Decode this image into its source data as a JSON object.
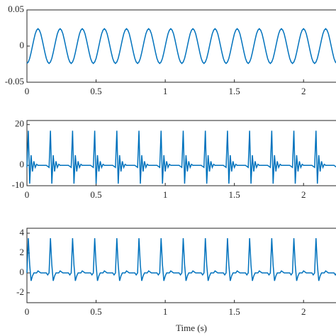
{
  "chart_data": {
    "type": "line",
    "xlabel": "Time (s)",
    "xlim": [
      0,
      2.25
    ],
    "xticks": [
      0,
      0.5,
      1,
      1.5,
      2
    ],
    "x": [
      0,
      0.01,
      0.02,
      0.03,
      0.04,
      0.05,
      0.06,
      0.07,
      0.08,
      0.09,
      0.1,
      0.11,
      0.12,
      0.13,
      0.14,
      0.15,
      0.16,
      0.17,
      0.18,
      0.19,
      0.2,
      0.21,
      0.22,
      0.23,
      0.24,
      0.25,
      0.26,
      0.27,
      0.28,
      0.29,
      0.3,
      0.31,
      0.32,
      0.33,
      0.34,
      0.35,
      0.36,
      0.37,
      0.38,
      0.39,
      0.4,
      0.41,
      0.42,
      0.43,
      0.44,
      0.45,
      0.46,
      0.47,
      0.48,
      0.49,
      0.5,
      0.51,
      0.52,
      0.53,
      0.54,
      0.55,
      0.56,
      0.57,
      0.58,
      0.59,
      0.6,
      0.61,
      0.62,
      0.63,
      0.64,
      0.65,
      0.66,
      0.67,
      0.68,
      0.69,
      0.7,
      0.71,
      0.72,
      0.73,
      0.74,
      0.75,
      0.76,
      0.77,
      0.78,
      0.79,
      0.8,
      0.81,
      0.82,
      0.83,
      0.84,
      0.85,
      0.86,
      0.87,
      0.88,
      0.89,
      0.9,
      0.91,
      0.92,
      0.93,
      0.94,
      0.95,
      0.96,
      0.97,
      0.98,
      0.99,
      1,
      1.01,
      1.02,
      1.03,
      1.04,
      1.05,
      1.06,
      1.07,
      1.08,
      1.09,
      1.1,
      1.11,
      1.12,
      1.13,
      1.14,
      1.15,
      1.16,
      1.17,
      1.18,
      1.19,
      1.2,
      1.21,
      1.22,
      1.23,
      1.24,
      1.25,
      1.26,
      1.27,
      1.28,
      1.29,
      1.3,
      1.31,
      1.32,
      1.33,
      1.34,
      1.35,
      1.36,
      1.37,
      1.38,
      1.39,
      1.4,
      1.41,
      1.42,
      1.43,
      1.44,
      1.45,
      1.46,
      1.47,
      1.48,
      1.49,
      1.5,
      1.51,
      1.52,
      1.53,
      1.54,
      1.55,
      1.56,
      1.57,
      1.58,
      1.59,
      1.6,
      1.61,
      1.62,
      1.63,
      1.64,
      1.65,
      1.66,
      1.67,
      1.68,
      1.69,
      1.7,
      1.71,
      1.72,
      1.73,
      1.74,
      1.75,
      1.76,
      1.77,
      1.78,
      1.79,
      1.8,
      1.81,
      1.82,
      1.83,
      1.84,
      1.85,
      1.86,
      1.87,
      1.88,
      1.89,
      1.9,
      1.91,
      1.92,
      1.93,
      1.94,
      1.95,
      1.96,
      1.97,
      1.98,
      1.99,
      2,
      2.01,
      2.02,
      2.03,
      2.04,
      2.05,
      2.06,
      2.07,
      2.08,
      2.09,
      2.1,
      2.11,
      2.12,
      2.13,
      2.14,
      2.15,
      2.16,
      2.17,
      2.18,
      2.19,
      2.2,
      2.21,
      2.22,
      2.23,
      2.24
    ],
    "panels": [
      {
        "ylim": [
          -0.05,
          0.05
        ],
        "yticks": [
          -0.05,
          0,
          0.05
        ],
        "series": [
          {
            "color": "#0072BD",
            "values": [
              -0.024,
              -0.022,
              -0.017,
              -0.009,
              0,
              0.009,
              0.017,
              0.022,
              0.024,
              0.022,
              0.017,
              0.009,
              0,
              -0.009,
              -0.017,
              -0.022,
              -0.024,
              -0.022,
              -0.017,
              -0.009,
              0,
              0.009,
              0.017,
              0.022,
              0.024,
              0.022,
              0.017,
              0.009,
              0,
              -0.009,
              -0.017,
              -0.022,
              -0.024,
              -0.022,
              -0.017,
              -0.009,
              0,
              0.009,
              0.017,
              0.022,
              0.024,
              0.022,
              0.017,
              0.009,
              0,
              -0.009,
              -0.017,
              -0.022,
              -0.024,
              -0.022,
              -0.017,
              -0.009,
              0,
              0.009,
              0.017,
              0.022,
              0.024,
              0.022,
              0.017,
              0.009,
              0,
              -0.009,
              -0.017,
              -0.022,
              -0.024,
              -0.022,
              -0.017,
              -0.009,
              0,
              0.009,
              0.017,
              0.022,
              0.024,
              0.022,
              0.017,
              0.009,
              0,
              -0.009,
              -0.017,
              -0.022,
              -0.024,
              -0.022,
              -0.017,
              -0.009,
              0,
              0.009,
              0.017,
              0.022,
              0.024,
              0.022,
              0.017,
              0.009,
              0,
              -0.009,
              -0.017,
              -0.022,
              -0.024,
              -0.022,
              -0.017,
              -0.009,
              0,
              0.009,
              0.017,
              0.022,
              0.024,
              0.022,
              0.017,
              0.009,
              0,
              -0.009,
              -0.017,
              -0.022,
              -0.024,
              -0.022,
              -0.017,
              -0.009,
              0,
              0.009,
              0.017,
              0.022,
              0.024,
              0.022,
              0.017,
              0.009,
              0,
              -0.009,
              -0.017,
              -0.022,
              -0.024,
              -0.022,
              -0.017,
              -0.009,
              0,
              0.009,
              0.017,
              0.022,
              0.024,
              0.022,
              0.017,
              0.009,
              0,
              -0.009,
              -0.017,
              -0.022,
              -0.024,
              -0.022,
              -0.017,
              -0.009,
              0,
              0.009,
              0.017,
              0.022,
              0.024,
              0.022,
              0.017,
              0.009,
              0,
              -0.009,
              -0.017,
              -0.022,
              -0.024,
              -0.022,
              -0.017,
              -0.009,
              0,
              0.009,
              0.017,
              0.022,
              0.024,
              0.022,
              0.017,
              0.009,
              0,
              -0.009,
              -0.017,
              -0.022,
              -0.024,
              -0.022,
              -0.017,
              -0.009,
              0,
              0.009,
              0.017,
              0.022,
              0.024,
              0.022,
              0.017,
              0.009,
              0,
              -0.009,
              -0.017,
              -0.022,
              -0.024,
              -0.022,
              -0.017,
              -0.009,
              0,
              0.009,
              0.017,
              0.022,
              0.024,
              0.022,
              0.017,
              0.009,
              0,
              -0.009,
              -0.017,
              -0.022,
              -0.024,
              -0.022,
              -0.017,
              -0.009,
              0,
              0.009,
              0.017,
              0.022,
              0.024,
              0.022,
              0.017,
              0.009,
              0,
              -0.009,
              -0.017,
              -0.022,
              -0.024
            ]
          }
        ]
      },
      {
        "ylim": [
          -10,
          22
        ],
        "yticks": [
          -10,
          0,
          20
        ],
        "series": [
          {
            "color": "#0072BD",
            "values": [
              -1,
              17,
              -9,
              5,
              -3,
              2,
              -1,
              0.5,
              0,
              0,
              0,
              0,
              0,
              0,
              0,
              -0.5,
              -1,
              17,
              -9,
              5,
              -3,
              2,
              -1,
              0.5,
              0,
              0,
              0,
              0,
              0,
              0,
              0,
              -0.5,
              -1,
              17,
              -9,
              5,
              -3,
              2,
              -1,
              0.5,
              0,
              0,
              0,
              0,
              0,
              0,
              0,
              -0.5,
              -1,
              17,
              -9,
              5,
              -3,
              2,
              -1,
              0.5,
              0,
              0,
              0,
              0,
              0,
              0,
              0,
              -0.5,
              -1,
              17,
              -9,
              5,
              -3,
              2,
              -1,
              0.5,
              0,
              0,
              0,
              0,
              0,
              0,
              0,
              -0.5,
              -1,
              17,
              -9,
              5,
              -3,
              2,
              -1,
              0.5,
              0,
              0,
              0,
              0,
              0,
              0,
              0,
              -0.5,
              -1,
              17,
              -9,
              5,
              -3,
              2,
              -1,
              0.5,
              0,
              0,
              0,
              0,
              0,
              0,
              0,
              -0.5,
              -1,
              17,
              -9,
              5,
              -3,
              2,
              -1,
              0.5,
              0,
              0,
              0,
              0,
              0,
              0,
              0,
              -0.5,
              -1,
              17,
              -9,
              5,
              -3,
              2,
              -1,
              0.5,
              0,
              0,
              0,
              0,
              0,
              0,
              0,
              -0.5,
              -1,
              17,
              -9,
              5,
              -3,
              2,
              -1,
              0.5,
              0,
              0,
              0,
              0,
              0,
              0,
              0,
              -0.5,
              -1,
              17,
              -9,
              5,
              -3,
              2,
              -1,
              0.5,
              0,
              0,
              0,
              0,
              0,
              0,
              0,
              -0.5,
              -1,
              17,
              -9,
              5,
              -3,
              2,
              -1,
              0.5,
              0,
              0,
              0,
              0,
              0,
              0,
              0,
              -0.5,
              -1,
              17,
              -9,
              5,
              -3,
              2,
              -1,
              0.5,
              0,
              0,
              0,
              0,
              0,
              0,
              0,
              -0.5,
              -1,
              17,
              -9,
              5,
              -3,
              2,
              -1,
              0.5,
              0,
              0,
              0,
              0,
              0,
              0,
              0,
              -0.5,
              -1
            ]
          }
        ]
      },
      {
        "ylim": [
          -3,
          4.5
        ],
        "yticks": [
          -2,
          0,
          2,
          4
        ],
        "series": [
          {
            "color": "#0072BD",
            "values": [
              0,
              3.5,
              0.8,
              -0.8,
              -0.3,
              0,
              0,
              0,
              0.2,
              0.1,
              0,
              0,
              0,
              0,
              0,
              -0.2,
              0,
              3.5,
              0.8,
              -0.8,
              -0.3,
              0,
              0,
              0,
              0.2,
              0.1,
              0,
              0,
              0,
              0,
              0,
              -0.2,
              0,
              3.5,
              0.8,
              -0.8,
              -0.3,
              0,
              0,
              0,
              0.2,
              0.1,
              0,
              0,
              0,
              0,
              0,
              -0.2,
              0,
              3.5,
              0.8,
              -0.8,
              -0.3,
              0,
              0,
              0,
              0.2,
              0.1,
              0,
              0,
              0,
              0,
              0,
              -0.2,
              0,
              3.5,
              0.8,
              -0.8,
              -0.3,
              0,
              0,
              0,
              0.2,
              0.1,
              0,
              0,
              0,
              0,
              0,
              -0.2,
              0,
              3.5,
              0.8,
              -0.8,
              -0.3,
              0,
              0,
              0,
              0.2,
              0.1,
              0,
              0,
              0,
              0,
              0,
              -0.2,
              0,
              3.5,
              0.8,
              -0.8,
              -0.3,
              0,
              0,
              0,
              0.2,
              0.1,
              0,
              0,
              0,
              0,
              0,
              -0.2,
              0,
              3.5,
              0.8,
              -0.8,
              -0.3,
              0,
              0,
              0,
              0.2,
              0.1,
              0,
              0,
              0,
              0,
              0,
              -0.2,
              0,
              3.5,
              0.8,
              -0.8,
              -0.3,
              0,
              0,
              0,
              0.2,
              0.1,
              0,
              0,
              0,
              0,
              0,
              -0.2,
              0,
              3.5,
              0.8,
              -0.8,
              -0.3,
              0,
              0,
              0,
              0.2,
              0.1,
              0,
              0,
              0,
              0,
              0,
              -0.2,
              0,
              3.5,
              0.8,
              -0.8,
              -0.3,
              0,
              0,
              0,
              0.2,
              0.1,
              0,
              0,
              0,
              0,
              0,
              -0.2,
              0,
              3.5,
              0.8,
              -0.8,
              -0.3,
              0,
              0,
              0,
              0.2,
              0.1,
              0,
              0,
              0,
              0,
              0,
              -0.2,
              0,
              3.5,
              0.8,
              -0.8,
              -0.3,
              0,
              0,
              0,
              0.2,
              0.1,
              0,
              0,
              0,
              0,
              0,
              -0.2,
              0,
              3.5,
              0.8,
              -0.8,
              -0.3,
              0,
              0,
              0,
              0.2,
              0.1,
              0,
              0,
              0,
              0,
              0,
              -0.2,
              0
            ]
          }
        ]
      }
    ]
  }
}
